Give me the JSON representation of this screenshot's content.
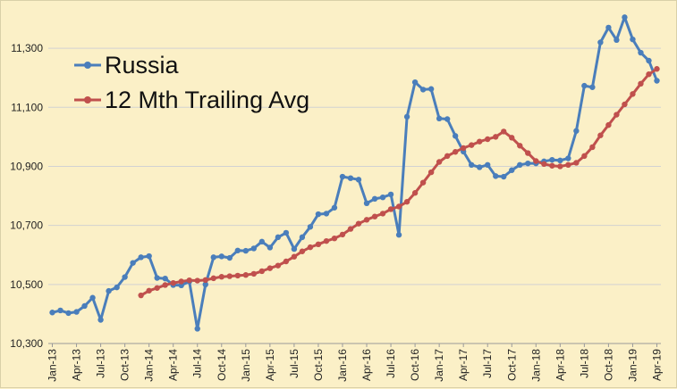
{
  "chart_data": {
    "type": "line",
    "title": "",
    "xlabel": "",
    "ylabel": "",
    "ylim": [
      10300,
      11400
    ],
    "yticks": [
      10300,
      10500,
      10700,
      10900,
      11100,
      11300
    ],
    "ytick_labels": [
      "10,300",
      "10,500",
      "10,700",
      "10,900",
      "11,100",
      "11,300"
    ],
    "grid": "horizontal",
    "legend_position": "top-left",
    "x": [
      "Jan-13",
      "Feb-13",
      "Mar-13",
      "Apr-13",
      "May-13",
      "Jun-13",
      "Jul-13",
      "Aug-13",
      "Sep-13",
      "Oct-13",
      "Nov-13",
      "Dec-13",
      "Jan-14",
      "Feb-14",
      "Mar-14",
      "Apr-14",
      "May-14",
      "Jun-14",
      "Jul-14",
      "Aug-14",
      "Sep-14",
      "Oct-14",
      "Nov-14",
      "Dec-14",
      "Jan-15",
      "Feb-15",
      "Mar-15",
      "Apr-15",
      "May-15",
      "Jun-15",
      "Jul-15",
      "Aug-15",
      "Sep-15",
      "Oct-15",
      "Nov-15",
      "Dec-15",
      "Jan-16",
      "Feb-16",
      "Mar-16",
      "Apr-16",
      "May-16",
      "Jun-16",
      "Jul-16",
      "Aug-16",
      "Sep-16",
      "Oct-16",
      "Nov-16",
      "Dec-16",
      "Jan-17",
      "Feb-17",
      "Mar-17",
      "Apr-17",
      "May-17",
      "Jun-17",
      "Jul-17",
      "Aug-17",
      "Sep-17",
      "Oct-17",
      "Nov-17",
      "Dec-17",
      "Jan-18",
      "Feb-18",
      "Mar-18",
      "Apr-18",
      "May-18",
      "Jun-18",
      "Jul-18",
      "Aug-18",
      "Sep-18",
      "Oct-18",
      "Nov-18",
      "Dec-18",
      "Jan-19",
      "Feb-19",
      "Mar-19",
      "Apr-19"
    ],
    "x_tick_labels": [
      "Jan-13",
      "Apr-13",
      "Jul-13",
      "Oct-13",
      "Jan-14",
      "Apr-14",
      "Jul-14",
      "Oct-14",
      "Jan-15",
      "Apr-15",
      "Jul-15",
      "Oct-15",
      "Jan-16",
      "Apr-16",
      "Jul-16",
      "Oct-16",
      "Jan-17",
      "Apr-17",
      "Jul-17",
      "Oct-17",
      "Jan-18",
      "Apr-18",
      "Jul-18",
      "Oct-18",
      "Jan-19",
      "Apr-19"
    ],
    "series": [
      {
        "name": "Russia",
        "color": "#4a7ebb",
        "values": [
          10405,
          10412,
          10403,
          10407,
          10427,
          10455,
          10380,
          10478,
          10490,
          10525,
          10573,
          10592,
          10596,
          10522,
          10520,
          10498,
          10497,
          10510,
          10350,
          10500,
          10592,
          10595,
          10590,
          10615,
          10614,
          10622,
          10645,
          10625,
          10660,
          10675,
          10620,
          10660,
          10695,
          10738,
          10740,
          10760,
          10865,
          10860,
          10855,
          10775,
          10790,
          10795,
          10805,
          10668,
          11068,
          11185,
          11160,
          11162,
          11062,
          11060,
          11003,
          10950,
          10905,
          10897,
          10905,
          10867,
          10865,
          10887,
          10905,
          10910,
          10910,
          10917,
          10922,
          10920,
          10927,
          11020,
          11173,
          11168,
          11320,
          11370,
          11328,
          11405,
          11330,
          11285,
          11258,
          11190
        ]
      },
      {
        "name": "12 Mth Trailing Avg",
        "color": "#c0504d",
        "values": [
          null,
          null,
          null,
          null,
          null,
          null,
          null,
          null,
          null,
          null,
          null,
          10463,
          10479,
          10488,
          10498,
          10505,
          10510,
          10514,
          10513,
          10515,
          10521,
          10526,
          10528,
          10530,
          10532,
          10536,
          10545,
          10555,
          10564,
          10578,
          10594,
          10612,
          10626,
          10636,
          10647,
          10656,
          10669,
          10688,
          10706,
          10719,
          10730,
          10740,
          10755,
          10764,
          10780,
          10810,
          10845,
          10880,
          10915,
          10935,
          10949,
          10962,
          10972,
          10984,
          10992,
          11000,
          11018,
          10997,
          10970,
          10945,
          10918,
          10908,
          10902,
          10900,
          10905,
          10912,
          10935,
          10965,
          11005,
          11040,
          11075,
          11110,
          11145,
          11180,
          11212,
          11230
        ]
      }
    ]
  }
}
